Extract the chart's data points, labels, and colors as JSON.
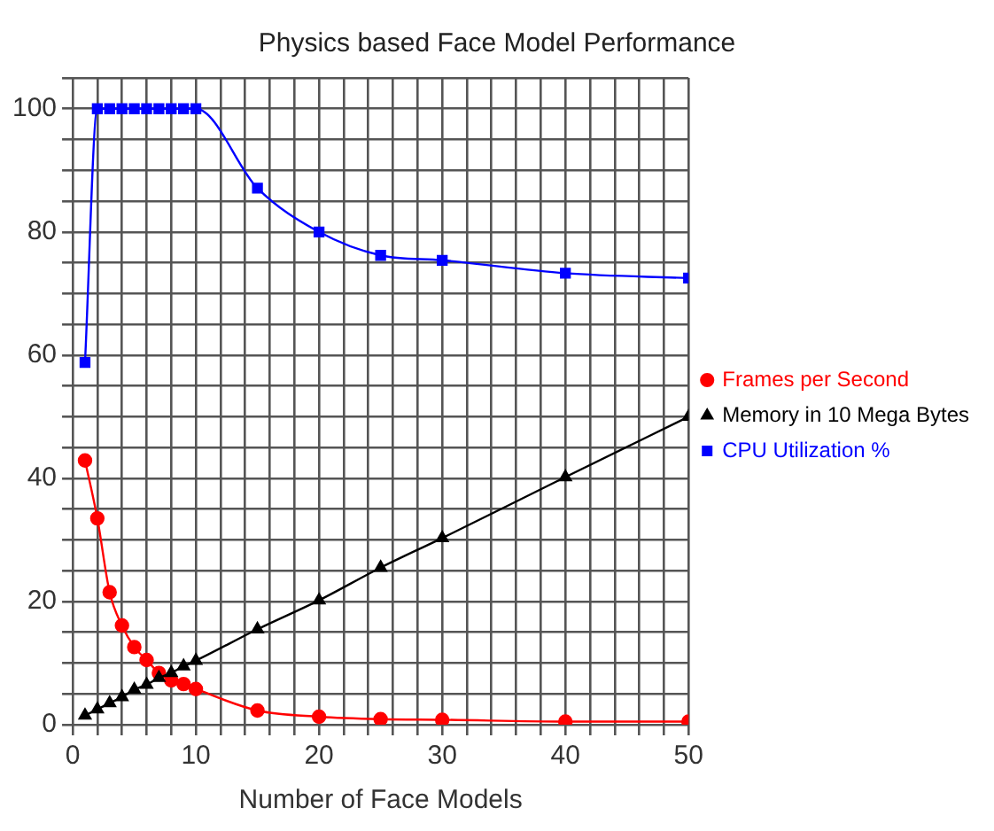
{
  "chart_data": {
    "type": "line",
    "title": "Physics based Face Model Performance",
    "xlabel": "Number of Face Models",
    "x": [
      1,
      2,
      3,
      4,
      5,
      6,
      7,
      8,
      9,
      10,
      15,
      20,
      25,
      30,
      40,
      50
    ],
    "series": [
      {
        "name": "Frames per Second",
        "color": "#ff0000",
        "marker": "circle",
        "values": [
          42.9,
          33.5,
          21.5,
          16.1,
          12.6,
          10.5,
          8.4,
          7.2,
          6.6,
          5.8,
          2.3,
          1.3,
          0.9,
          0.8,
          0.5,
          0.5
        ]
      },
      {
        "name": "Memory in 10 Mega Bytes",
        "color": "#000000",
        "marker": "triangle",
        "values": [
          1.5,
          2.5,
          3.5,
          4.5,
          5.7,
          6.5,
          7.6,
          8.4,
          9.5,
          10.4,
          15.5,
          20.2,
          25.5,
          30.3,
          40.2,
          50
        ]
      },
      {
        "name": "CPU Utilization %",
        "color": "#0000ff",
        "marker": "square",
        "values": [
          58.8,
          100,
          100,
          100,
          100,
          100,
          100,
          100,
          100,
          100,
          87.1,
          80,
          76.2,
          75.4,
          73.3,
          72.5
        ]
      }
    ],
    "xlim": [
      0,
      50
    ],
    "xticks": [
      0,
      {
        "value": 2,
        "label": null
      },
      {
        "value": 4,
        "label": null
      },
      {
        "value": 6,
        "label": null
      },
      {
        "value": 8,
        "label": null
      },
      10,
      {
        "value": 12,
        "label": null
      },
      {
        "value": 14,
        "label": null
      },
      {
        "value": 16,
        "label": null
      },
      {
        "value": 18,
        "label": null
      },
      20,
      {
        "value": 22,
        "label": null
      },
      {
        "value": 24,
        "label": null
      },
      {
        "value": 26,
        "label": null
      },
      {
        "value": 28,
        "label": null
      },
      30,
      {
        "value": 32,
        "label": null
      },
      {
        "value": 34,
        "label": null
      },
      {
        "value": 36,
        "label": null
      },
      {
        "value": 38,
        "label": null
      },
      40,
      {
        "value": 42,
        "label": null
      },
      {
        "value": 44,
        "label": null
      },
      {
        "value": 46,
        "label": null
      },
      {
        "value": 48,
        "label": null
      },
      50
    ],
    "ylim": [
      0,
      105
    ],
    "yticks": [
      0,
      {
        "value": 5,
        "label": null
      },
      {
        "value": 10,
        "label": null
      },
      {
        "value": 15,
        "label": null
      },
      20,
      {
        "value": 25,
        "label": null
      },
      {
        "value": 30,
        "label": null
      },
      {
        "value": 35,
        "label": null
      },
      40,
      {
        "value": 45,
        "label": null
      },
      {
        "value": 50,
        "label": null
      },
      {
        "value": 55,
        "label": null
      },
      60,
      {
        "value": 65,
        "label": null
      },
      {
        "value": 70,
        "label": null
      },
      {
        "value": 75,
        "label": null
      },
      80,
      {
        "value": 85,
        "label": null
      },
      {
        "value": 90,
        "label": null
      },
      {
        "value": 95,
        "label": null
      },
      100,
      {
        "value": 105,
        "label": null
      }
    ],
    "grid": true,
    "legend": "right",
    "line_style": "solid"
  }
}
